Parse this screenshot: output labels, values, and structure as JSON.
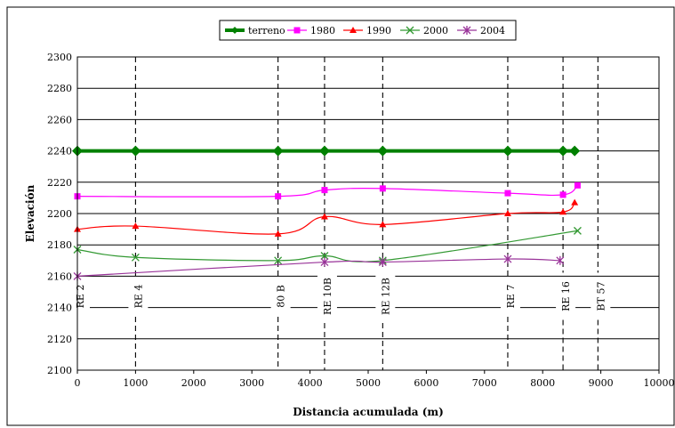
{
  "chart_data": {
    "type": "line",
    "xlabel": "Distancia acumulada (m)",
    "ylabel": "Elevación",
    "xlim": [
      0,
      10000
    ],
    "ylim": [
      2100,
      2300
    ],
    "x_ticks": [
      0,
      1000,
      2000,
      3000,
      4000,
      5000,
      6000,
      7000,
      8000,
      9000,
      10000
    ],
    "y_ticks": [
      2100,
      2120,
      2140,
      2160,
      2180,
      2200,
      2220,
      2240,
      2260,
      2280,
      2300
    ],
    "grid": "horizontal solid, vertical dashed at stations",
    "legend_position": "top-center",
    "series": [
      {
        "name": "terreno",
        "color": "#008000",
        "marker": "diamond",
        "points": [
          [
            0,
            2240
          ],
          [
            1000,
            2240
          ],
          [
            3450,
            2240
          ],
          [
            4250,
            2240
          ],
          [
            5250,
            2240
          ],
          [
            7400,
            2240
          ],
          [
            8350,
            2240
          ],
          [
            8550,
            2240
          ]
        ]
      },
      {
        "name": "1980",
        "color": "#ff00ff",
        "marker": "square",
        "points": [
          [
            0,
            2211
          ],
          [
            3450,
            2211
          ],
          [
            4250,
            2215
          ],
          [
            5250,
            2216
          ],
          [
            7400,
            2213
          ],
          [
            8350,
            2212
          ],
          [
            8600,
            2218
          ]
        ]
      },
      {
        "name": "1990",
        "color": "#ff0000",
        "marker": "triangle",
        "points": [
          [
            0,
            2190
          ],
          [
            1000,
            2192
          ],
          [
            3450,
            2187
          ],
          [
            4250,
            2198
          ],
          [
            5250,
            2193
          ],
          [
            7400,
            2200
          ],
          [
            8350,
            2201
          ],
          [
            8550,
            2207
          ]
        ]
      },
      {
        "name": "2000",
        "color": "#339933",
        "marker": "x",
        "points": [
          [
            0,
            2177
          ],
          [
            1000,
            2172
          ],
          [
            3450,
            2170
          ],
          [
            4250,
            2173
          ],
          [
            5250,
            2170
          ],
          [
            8600,
            2189
          ]
        ]
      },
      {
        "name": "2004",
        "color": "#993399",
        "marker": "star",
        "points": [
          [
            0,
            2160
          ],
          [
            4250,
            2169
          ],
          [
            5250,
            2169
          ],
          [
            7400,
            2171
          ],
          [
            8300,
            2170
          ]
        ]
      }
    ],
    "stations": [
      {
        "label": "RE 2",
        "x": 0
      },
      {
        "label": "RE 4",
        "x": 1000
      },
      {
        "label": "80 B",
        "x": 3450
      },
      {
        "label": "RE 10B",
        "x": 4250
      },
      {
        "label": "RE 12B",
        "x": 5250
      },
      {
        "label": "RE 7",
        "x": 7400
      },
      {
        "label": "RE 16",
        "x": 8350
      },
      {
        "label": "BT 57",
        "x": 8950
      }
    ]
  }
}
